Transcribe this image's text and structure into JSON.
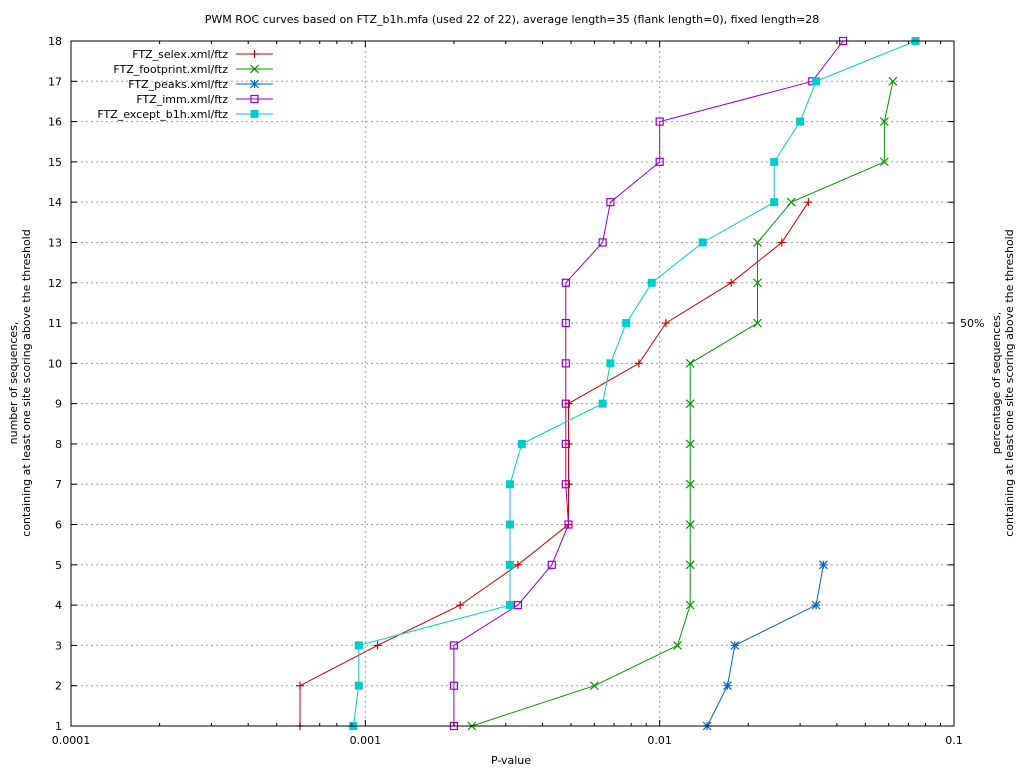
{
  "chart_data": {
    "type": "line",
    "title": "PWM ROC curves based on FTZ_b1h.mfa (used 22 of 22), average length=35 (flank length=0), fixed length=28",
    "xlabel": "P-value",
    "ylabel_lines": [
      "number of sequences,",
      "containing at least one site scoring above the threshold"
    ],
    "y2label_lines": [
      "percentage of sequences,",
      "containing at least one site scoring above the threshold"
    ],
    "x_scale": "log",
    "xlim": [
      0.0001,
      0.1
    ],
    "ylim": [
      1,
      18
    ],
    "x_ticks": [
      {
        "value": 0.0001,
        "label": "0.0001"
      },
      {
        "value": 0.001,
        "label": "0.001"
      },
      {
        "value": 0.01,
        "label": "0.01"
      },
      {
        "value": 0.1,
        "label": "0.1"
      }
    ],
    "y_ticks": [
      1,
      2,
      3,
      4,
      5,
      6,
      7,
      8,
      9,
      10,
      11,
      12,
      13,
      14,
      15,
      16,
      17,
      18
    ],
    "y2_ticks": [
      {
        "value": 11,
        "label": "50%"
      }
    ],
    "grid": true,
    "legend_position": "top-left",
    "series": [
      {
        "name": "FTZ_selex.xml/ftz",
        "color": "#cc0000",
        "marker": "plus",
        "points": [
          [
            0.0006,
            1
          ],
          [
            0.0006,
            2
          ],
          [
            0.0011,
            3
          ],
          [
            0.0021,
            4
          ],
          [
            0.0033,
            5
          ],
          [
            0.0049,
            6
          ],
          [
            0.0049,
            7
          ],
          [
            0.0049,
            8
          ],
          [
            0.0049,
            9
          ],
          [
            0.0085,
            10
          ],
          [
            0.0105,
            11
          ],
          [
            0.0175,
            12
          ],
          [
            0.026,
            13
          ],
          [
            0.032,
            14
          ]
        ]
      },
      {
        "name": "FTZ_footprint.xml/ftz",
        "color": "#009900",
        "marker": "x",
        "points": [
          [
            0.0023,
            1
          ],
          [
            0.006,
            2
          ],
          [
            0.0115,
            3
          ],
          [
            0.0127,
            4
          ],
          [
            0.0127,
            5
          ],
          [
            0.0127,
            6
          ],
          [
            0.0127,
            7
          ],
          [
            0.0127,
            8
          ],
          [
            0.0127,
            9
          ],
          [
            0.0127,
            10
          ],
          [
            0.0215,
            11
          ],
          [
            0.0215,
            12
          ],
          [
            0.0215,
            13
          ],
          [
            0.028,
            14
          ],
          [
            0.058,
            15
          ],
          [
            0.058,
            16
          ],
          [
            0.062,
            17
          ]
        ]
      },
      {
        "name": "FTZ_peaks.xml/ftz",
        "color": "#0066cc",
        "marker": "star",
        "points": [
          [
            0.0145,
            1
          ],
          [
            0.017,
            2
          ],
          [
            0.018,
            3
          ],
          [
            0.034,
            4
          ],
          [
            0.036,
            5
          ]
        ]
      },
      {
        "name": "FTZ_imm.xml/ftz",
        "color": "#9900cc",
        "marker": "square",
        "points": [
          [
            0.002,
            1
          ],
          [
            0.002,
            2
          ],
          [
            0.002,
            3
          ],
          [
            0.0033,
            4
          ],
          [
            0.0043,
            5
          ],
          [
            0.0049,
            6
          ],
          [
            0.0048,
            7
          ],
          [
            0.0048,
            8
          ],
          [
            0.0048,
            9
          ],
          [
            0.0048,
            10
          ],
          [
            0.0048,
            11
          ],
          [
            0.0048,
            12
          ],
          [
            0.0064,
            13
          ],
          [
            0.0068,
            14
          ],
          [
            0.01,
            15
          ],
          [
            0.01,
            16
          ],
          [
            0.033,
            17
          ],
          [
            0.042,
            18
          ]
        ]
      },
      {
        "name": "FTZ_except_b1h.xml/ftz",
        "color": "#00cccc",
        "marker": "filledsquare",
        "points": [
          [
            0.00091,
            1
          ],
          [
            0.00095,
            2
          ],
          [
            0.00095,
            3
          ],
          [
            0.0031,
            4
          ],
          [
            0.0031,
            5
          ],
          [
            0.0031,
            6
          ],
          [
            0.0031,
            7
          ],
          [
            0.0034,
            8
          ],
          [
            0.0064,
            9
          ],
          [
            0.0068,
            10
          ],
          [
            0.0077,
            11
          ],
          [
            0.0094,
            12
          ],
          [
            0.014,
            13
          ],
          [
            0.0245,
            14
          ],
          [
            0.0245,
            15
          ],
          [
            0.03,
            16
          ],
          [
            0.034,
            17
          ],
          [
            0.074,
            18
          ]
        ]
      }
    ]
  }
}
